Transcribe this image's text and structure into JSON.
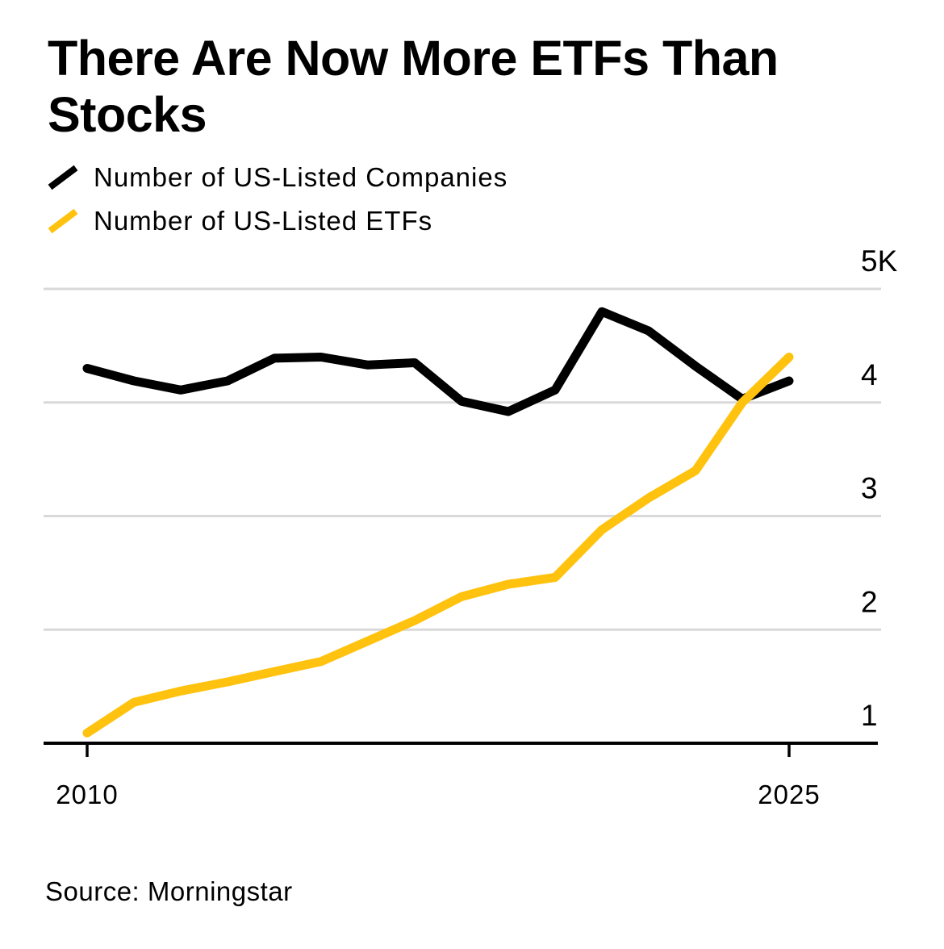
{
  "title": "There Are Now More ETFs Than Stocks",
  "legend": {
    "items": [
      {
        "label": "Number of US-Listed Companies",
        "color": "#000000"
      },
      {
        "label": "Number of US-Listed ETFs",
        "color": "#FFC20E"
      }
    ]
  },
  "source": "Source: Morningstar",
  "colors": {
    "companies_line": "#000000",
    "etfs_line": "#FFC20E",
    "gridline": "#D9D9D9",
    "axis": "#000000",
    "background": "#FFFFFF"
  },
  "chart_data": {
    "type": "line",
    "title": "There Are Now More ETFs Than Stocks",
    "xlabel": "",
    "ylabel": "",
    "x": [
      2010,
      2011,
      2012,
      2013,
      2014,
      2015,
      2016,
      2017,
      2018,
      2019,
      2020,
      2021,
      2022,
      2023,
      2024,
      2025
    ],
    "series": [
      {
        "name": "Number of US-Listed Companies",
        "color": "#000000",
        "values": [
          4300,
          4190,
          4110,
          4190,
          4390,
          4400,
          4330,
          4350,
          4010,
          3920,
          4110,
          4800,
          4630,
          4320,
          4030,
          4190
        ]
      },
      {
        "name": "Number of US-Listed ETFs",
        "color": "#FFC20E",
        "values": [
          1090,
          1360,
          1460,
          1540,
          1630,
          1720,
          1900,
          2080,
          2290,
          2400,
          2460,
          2880,
          3160,
          3400,
          4000,
          4400
        ]
      }
    ],
    "ylim": [
      1000,
      5000
    ],
    "yticks": [
      {
        "value": 5000,
        "label": "5K"
      },
      {
        "value": 4000,
        "label": "4"
      },
      {
        "value": 3000,
        "label": "3"
      },
      {
        "value": 2000,
        "label": "2"
      },
      {
        "value": 1000,
        "label": "1"
      }
    ],
    "xticks": [
      {
        "value": 2010,
        "label": "2010"
      },
      {
        "value": 2025,
        "label": "2025"
      }
    ],
    "grid": true,
    "legend_position": "top-left"
  }
}
